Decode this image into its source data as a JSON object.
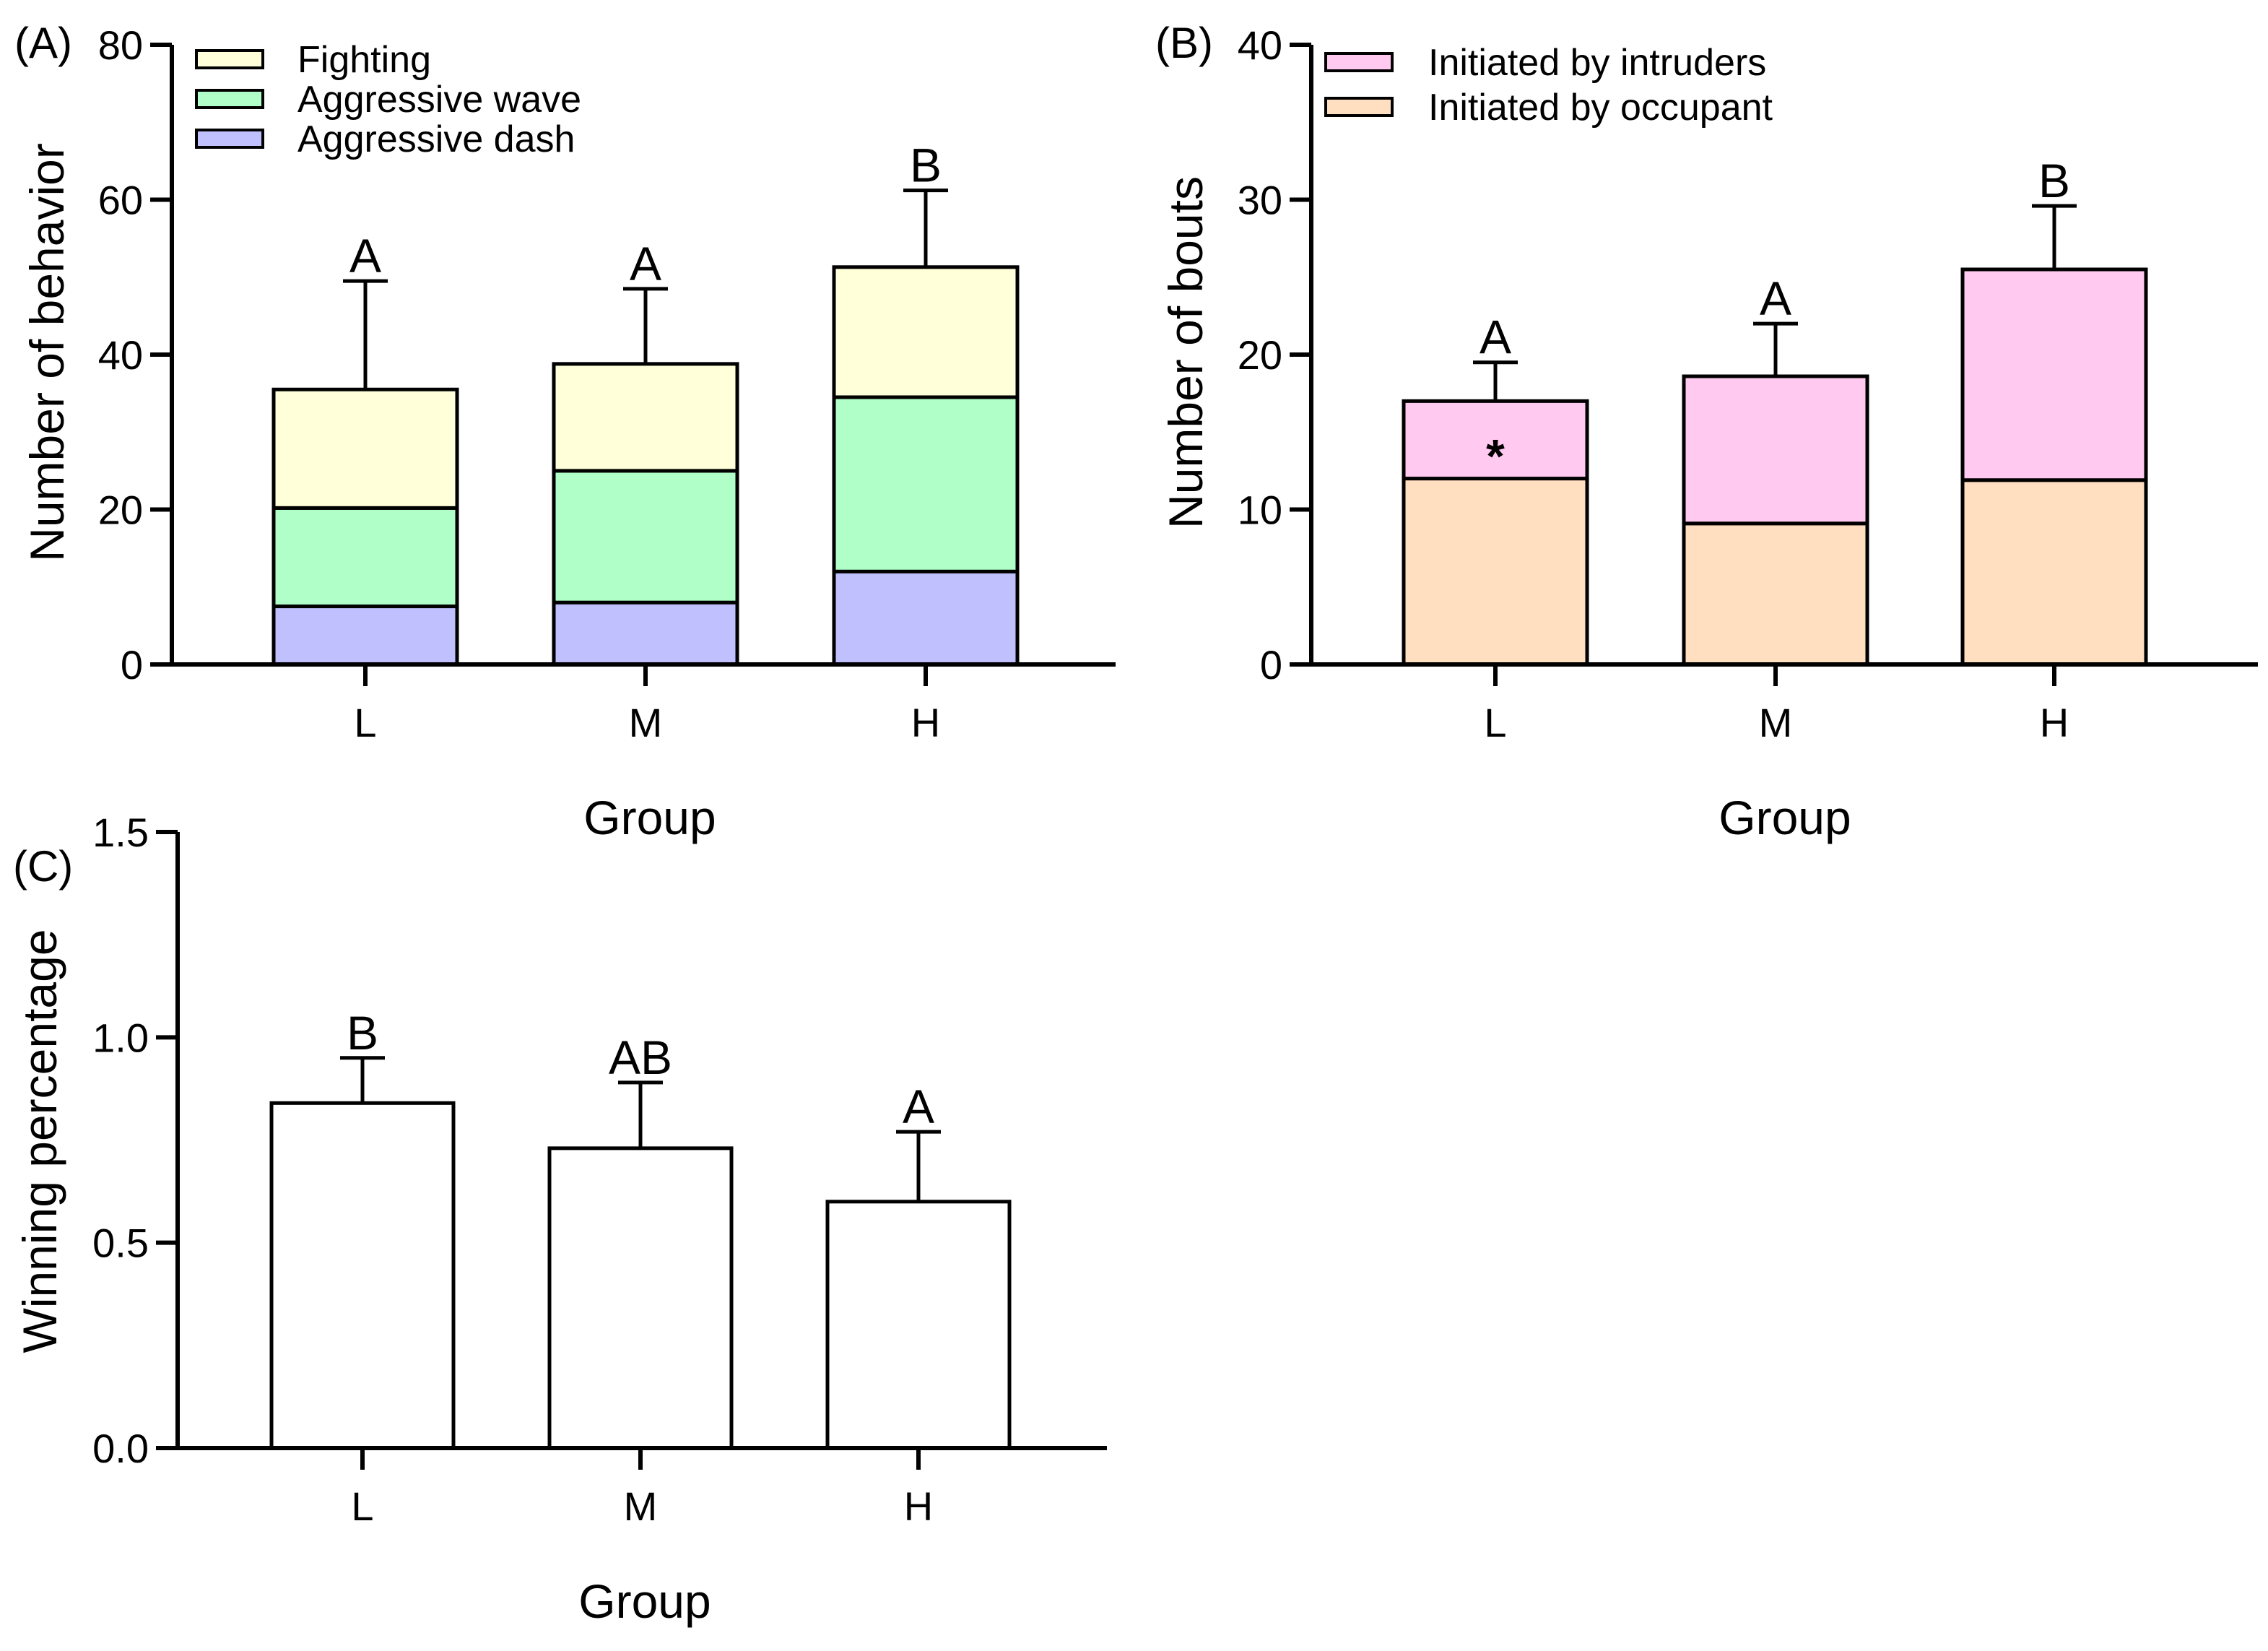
{
  "chart_data": [
    {
      "panel": "(A)",
      "type": "bar",
      "stacked": true,
      "categories": [
        "L",
        "M",
        "H"
      ],
      "series": [
        {
          "name": "Aggressive dash",
          "color": "#c0c0ff",
          "values": [
            7.5,
            8.0,
            12.0
          ]
        },
        {
          "name": "Aggressive wave",
          "color": "#b0ffc8",
          "values": [
            12.7,
            17.0,
            22.5
          ]
        },
        {
          "name": "Fighting",
          "color": "#ffffd9",
          "values": [
            15.3,
            13.8,
            16.8
          ]
        }
      ],
      "error_top": [
        49.5,
        48.5,
        61.2
      ],
      "letters": [
        "A",
        "A",
        "B"
      ],
      "xlabel": "Group",
      "ylabel": "Number of behavior",
      "ylim": [
        0,
        80
      ],
      "yticks": [
        "0",
        "20",
        "40",
        "60",
        "80"
      ],
      "legend_order": [
        "Fighting",
        "Aggressive wave",
        "Aggressive dash"
      ],
      "legend_position": "top-left"
    },
    {
      "panel": "(B)",
      "type": "bar",
      "stacked": true,
      "categories": [
        "L",
        "M",
        "H"
      ],
      "series": [
        {
          "name": "Initiated by occupant",
          "color": "#ffdfbf",
          "values": [
            12.0,
            9.1,
            11.9
          ]
        },
        {
          "name": "Initiated by intruders",
          "color": "#ffc9f0",
          "values": [
            5.0,
            9.5,
            13.6
          ]
        }
      ],
      "error_top": [
        19.5,
        22.0,
        29.6
      ],
      "letters": [
        "A",
        "A",
        "B"
      ],
      "annotation": "*",
      "xlabel": "Group",
      "ylabel": "Number of bouts",
      "ylim": [
        0,
        40
      ],
      "yticks": [
        "0",
        "10",
        "20",
        "30",
        "40"
      ],
      "legend_order": [
        "Initiated by intruders",
        "Initiated by occupant"
      ],
      "legend_position": "top-left"
    },
    {
      "panel": "(C)",
      "type": "bar",
      "stacked": false,
      "categories": [
        "L",
        "M",
        "H"
      ],
      "values": [
        0.84,
        0.73,
        0.6
      ],
      "error_top": [
        0.95,
        0.89,
        0.77
      ],
      "letters": [
        "B",
        "AB",
        "A"
      ],
      "color": "#ffffff",
      "xlabel": "Group",
      "ylabel": "Winning percentage",
      "ylim": [
        0,
        1.5
      ],
      "yticks": [
        "0.0",
        "0.5",
        "1.0",
        "1.5"
      ]
    }
  ]
}
